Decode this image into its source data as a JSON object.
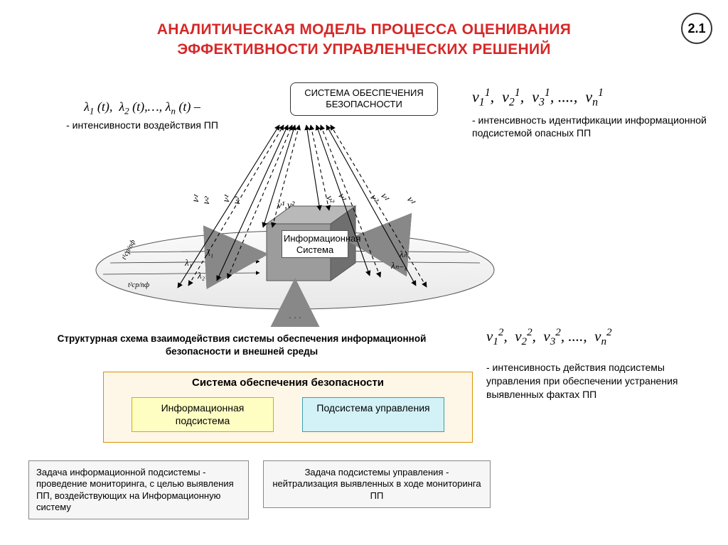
{
  "page_number": "2.1",
  "title_line1": "АНАЛИТИЧЕСКАЯ МОДЕЛЬ ПРОЦЕССА ОЦЕНИВАНИЯ",
  "title_line2": "ЭФФЕКТИВНОСТИ УПРАВЛЕНЧЕСКИХ РЕШЕНИЙ",
  "top_system_box": "СИСТЕМА ОБЕСПЕЧЕНИЯ БЕЗОПАСНОСТИ",
  "lambda_left": {
    "formula_html": "λ<sub>1</sub> (t), &nbsp;λ<sub>2</sub> (t),…, λ<sub>n</sub> (t) –",
    "desc": "- интенсивности воздействия ПП"
  },
  "nu_top": {
    "formula_html": "ν<sub>1</sub><sup>1</sup>, &nbsp;ν<sub>2</sub><sup>1</sup>, &nbsp;ν<sub>3</sub><sup>1</sup>, ...., &nbsp;ν<sub>n</sub><sup>1</sup>",
    "desc": "- интенсивность идентификации информационной подсистемой опасных ПП"
  },
  "nu_bottom": {
    "formula_html": "ν<sub>1</sub><sup>2</sup>, &nbsp;ν<sub>2</sub><sup>2</sup>, &nbsp;ν<sub>3</sub><sup>2</sup>, ...., &nbsp;ν<sub>n</sub><sup>2</sup>",
    "desc": "- интенсивность действия подсистемы управления при обеспечении устранения выявленных фактах ПП"
  },
  "cube_label": "Информационная Система",
  "schema_caption": "Структурная схема взаимодействия системы обеспечения информационной безопасности и внешней среды",
  "system_block": {
    "title": "Система обеспечения безопасности",
    "info": "Информационная подсистема",
    "mgmt": "Подсистема управления"
  },
  "task_info": "Задача информационной подсистемы - проведение мониторинга, с целью выявления ПП, воздействующих на Информационную систему",
  "task_mgmt": "Задача подсистемы управления - нейтрализация выявленных в ходе мониторинга ПП",
  "ellipse_dots": ". . .",
  "mini_labels": {
    "nu": [
      "ν¹",
      "ν²",
      "ν¹",
      "ν²",
      "ν¹,ν²",
      "ν²",
      "ν¹",
      "ν²",
      "ν¹",
      "ν¹"
    ],
    "lam": [
      "λ₁",
      "λ₁",
      "λ₂",
      "λₙ",
      "λₙ₋₁"
    ],
    "t1": "t¹ср/пф",
    "t2": "t²ср/пф"
  },
  "colors": {
    "title": "#d62828",
    "cube_top": "#b9b9b9",
    "cube_side": "#6f6f6f",
    "cube_front": "#9c9c9c",
    "sys_bg": "#fef6e6",
    "sys_border": "#d99300",
    "info_bg": "#fffec2",
    "mgmt_bg": "#d2f2f7"
  }
}
